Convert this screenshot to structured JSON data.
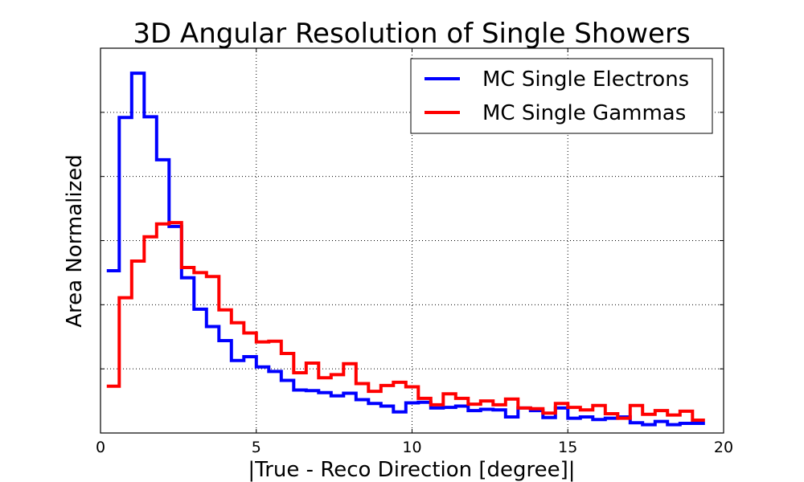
{
  "chart_data": {
    "type": "line",
    "title": "3D Angular Resolution of Single Showers",
    "xlabel": "|True - Reco Direction [degree]|",
    "ylabel": "Area Normalized",
    "xlim": [
      0,
      20
    ],
    "ylim": [
      0,
      6
    ],
    "grid": true,
    "legend": "upper-right",
    "x_ticks": [
      0,
      5,
      10,
      15,
      20
    ],
    "x_tick_labels": [
      "0",
      "5",
      "10",
      "15",
      "20"
    ],
    "y_ticks": [
      1,
      2,
      3,
      4,
      5,
      6
    ],
    "y_tick_labels_visible": false,
    "bin_edges": [
      0.2,
      0.6,
      1.0,
      1.4,
      1.8,
      2.2,
      2.6,
      3.0,
      3.4,
      3.8,
      4.2,
      4.6,
      5.0,
      5.4,
      5.8,
      6.2,
      6.6,
      7.0,
      7.4,
      7.8,
      8.2,
      8.6,
      9.0,
      9.4,
      9.8,
      10.2,
      10.6,
      11.0,
      11.4,
      11.8,
      12.2,
      12.6,
      13.0,
      13.4,
      13.8,
      14.2,
      14.6,
      15.0,
      15.4,
      15.8,
      16.2,
      16.6,
      17.0,
      17.4,
      17.8,
      18.2,
      18.6,
      19.0,
      19.4
    ],
    "series": [
      {
        "name": "MC Single Electrons",
        "color": "#0000ff",
        "values": [
          2.53,
          4.92,
          5.61,
          4.93,
          4.26,
          3.22,
          2.42,
          1.93,
          1.66,
          1.44,
          1.13,
          1.19,
          1.03,
          0.96,
          0.82,
          0.67,
          0.66,
          0.63,
          0.58,
          0.62,
          0.52,
          0.46,
          0.42,
          0.33,
          0.47,
          0.48,
          0.39,
          0.4,
          0.42,
          0.35,
          0.37,
          0.36,
          0.25,
          0.39,
          0.35,
          0.24,
          0.39,
          0.23,
          0.25,
          0.21,
          0.23,
          0.25,
          0.16,
          0.13,
          0.18,
          0.13,
          0.15,
          0.15
        ]
      },
      {
        "name": "MC Single Gammas",
        "color": "#ff0000",
        "values": [
          0.73,
          2.11,
          2.68,
          3.06,
          3.26,
          3.28,
          2.58,
          2.5,
          2.44,
          1.92,
          1.72,
          1.56,
          1.42,
          1.43,
          1.24,
          0.94,
          1.09,
          0.86,
          0.91,
          1.08,
          0.77,
          0.65,
          0.74,
          0.79,
          0.72,
          0.54,
          0.44,
          0.61,
          0.54,
          0.45,
          0.5,
          0.44,
          0.53,
          0.39,
          0.38,
          0.31,
          0.46,
          0.4,
          0.36,
          0.43,
          0.3,
          0.23,
          0.43,
          0.29,
          0.35,
          0.28,
          0.34,
          0.2
        ]
      }
    ]
  }
}
